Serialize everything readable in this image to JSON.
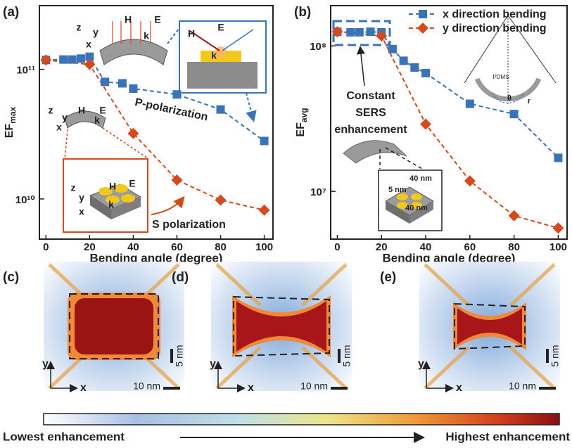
{
  "chart_data": [
    {
      "type": "line",
      "panel_label": "(a)",
      "xlabel": "Bending angle (degree)",
      "ylabel": "EF",
      "ylabel_sub": "max",
      "log_y": true,
      "xlim": [
        -3,
        104
      ],
      "xticks": [
        0,
        20,
        40,
        60,
        80,
        100
      ],
      "ylim": [
        4900000000.0,
        310000000000.0
      ],
      "yticks": [
        {
          "value": 10000000000.0,
          "label": "10¹⁰"
        },
        {
          "value": 100000000000.0,
          "label": "10¹¹"
        }
      ],
      "legend": false,
      "series": [
        {
          "name": "P-polarization",
          "color": "#3a73b8",
          "marker": "square",
          "x": [
            0,
            8,
            12,
            16,
            20,
            27,
            35,
            40,
            60,
            80,
            100
          ],
          "values": [
            118000000000.0,
            119000000000.0,
            119000000000.0,
            121000000000.0,
            125000000000.0,
            80000000000.0,
            78000000000.0,
            71000000000.0,
            64000000000.0,
            49000000000.0,
            28000000000.0
          ]
        },
        {
          "name": "S polarization",
          "color": "#d44a1c",
          "marker": "diamond",
          "x": [
            0,
            20,
            40,
            60,
            80,
            100
          ],
          "values": [
            118000000000.0,
            109000000000.0,
            32000000000.0,
            14000000000.0,
            9800000000.0,
            8200000000.0
          ]
        }
      ],
      "insets": [
        {
          "labels": [
            "z",
            "y",
            "x",
            "H",
            "E",
            "k"
          ]
        },
        {
          "labels": [
            "H",
            "E",
            "k"
          ]
        },
        {
          "labels": [
            "z",
            "y",
            "x",
            "H",
            "E",
            "k"
          ]
        },
        {
          "labels": [
            "z",
            "y",
            "x",
            "H",
            "E",
            "k"
          ]
        }
      ]
    },
    {
      "type": "line",
      "panel_label": "(b)",
      "xlabel": "Bending angle (degree)",
      "ylabel": "EF",
      "ylabel_sub": "avg",
      "log_y": true,
      "xlim": [
        -3,
        104
      ],
      "xticks": [
        0,
        20,
        40,
        60,
        80,
        100
      ],
      "ylim": [
        4700000.0,
        189000000.0
      ],
      "yticks": [
        {
          "value": 10000000.0,
          "label": "10⁷"
        },
        {
          "value": 100000000.0,
          "label": "10⁸"
        }
      ],
      "legend": "upper right",
      "series": [
        {
          "name": "x direction bending",
          "color": "#3a73b8",
          "marker": "square",
          "x": [
            0,
            6,
            10,
            15,
            20,
            25,
            30,
            35,
            40,
            60,
            80,
            100
          ],
          "values": [
            125000000.0,
            124000000.0,
            124000000.0,
            125000000.0,
            124000000.0,
            95000000.0,
            79000000.0,
            71000000.0,
            65000000.0,
            40000000.0,
            34000000.0,
            17000000.0
          ]
        },
        {
          "name": "y direction bending",
          "color": "#d44a1c",
          "marker": "diamond",
          "x": [
            0,
            20,
            40,
            60,
            80,
            100
          ],
          "values": [
            125000000.0,
            117000000.0,
            29000000.0,
            11800000.0,
            6800000.0,
            5600000.0
          ]
        }
      ],
      "annotation": [
        "Constant",
        "SERS",
        "enhancement"
      ],
      "insets": [
        {
          "labels": [
            "40 nm",
            "5 nm",
            "40 nm"
          ]
        },
        {
          "labels": [
            "PDMS",
            "θ",
            "r"
          ]
        }
      ]
    }
  ],
  "field_maps": [
    {
      "label": "(c)",
      "axis_labels": [
        "y",
        "x"
      ],
      "scale_bars": [
        "5 nm",
        "10 nm"
      ]
    },
    {
      "label": "(d)",
      "axis_labels": [
        "y",
        "x"
      ],
      "scale_bars": [
        "5 nm",
        "10 nm"
      ]
    },
    {
      "label": "(e)",
      "axis_labels": [
        "y",
        "x"
      ],
      "scale_bars": [
        "5 nm",
        "10 nm"
      ]
    }
  ],
  "colorbar": {
    "low": "Lowest enhancement",
    "high": "Highest enhancement"
  }
}
